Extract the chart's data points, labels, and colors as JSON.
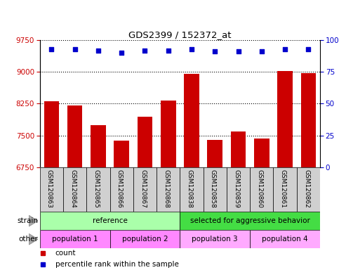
{
  "title": "GDS2399 / 152372_at",
  "samples": [
    "GSM120863",
    "GSM120864",
    "GSM120865",
    "GSM120866",
    "GSM120867",
    "GSM120868",
    "GSM120838",
    "GSM120858",
    "GSM120859",
    "GSM120860",
    "GSM120861",
    "GSM120862"
  ],
  "counts": [
    8300,
    8200,
    7750,
    7380,
    7950,
    8320,
    8960,
    7400,
    7600,
    7420,
    9020,
    8980
  ],
  "percentile_ranks": [
    93,
    93,
    92,
    90,
    92,
    92,
    93,
    91,
    91,
    91,
    93,
    93
  ],
  "ylim_left": [
    6750,
    9750
  ],
  "yticks_left": [
    6750,
    7500,
    8250,
    9000,
    9750
  ],
  "ylim_right": [
    0,
    100
  ],
  "yticks_right": [
    0,
    25,
    50,
    75,
    100
  ],
  "bar_color": "#cc0000",
  "dot_color": "#0000cc",
  "left_tick_color": "#cc0000",
  "right_tick_color": "#0000cc",
  "strain_groups": [
    {
      "label": "reference",
      "start": 0,
      "end": 6,
      "color": "#aaffaa"
    },
    {
      "label": "selected for aggressive behavior",
      "start": 6,
      "end": 12,
      "color": "#44dd44"
    }
  ],
  "other_groups": [
    {
      "label": "population 1",
      "start": 0,
      "end": 3,
      "color": "#ff88ff"
    },
    {
      "label": "population 2",
      "start": 3,
      "end": 6,
      "color": "#ff88ff"
    },
    {
      "label": "population 3",
      "start": 6,
      "end": 9,
      "color": "#ffaaff"
    },
    {
      "label": "population 4",
      "start": 9,
      "end": 12,
      "color": "#ffaaff"
    }
  ],
  "label_bg_color": "#d0d0d0",
  "legend_count_color": "#cc0000",
  "legend_dot_color": "#0000cc",
  "bg_color": "#ffffff",
  "grid_color": "#000000"
}
